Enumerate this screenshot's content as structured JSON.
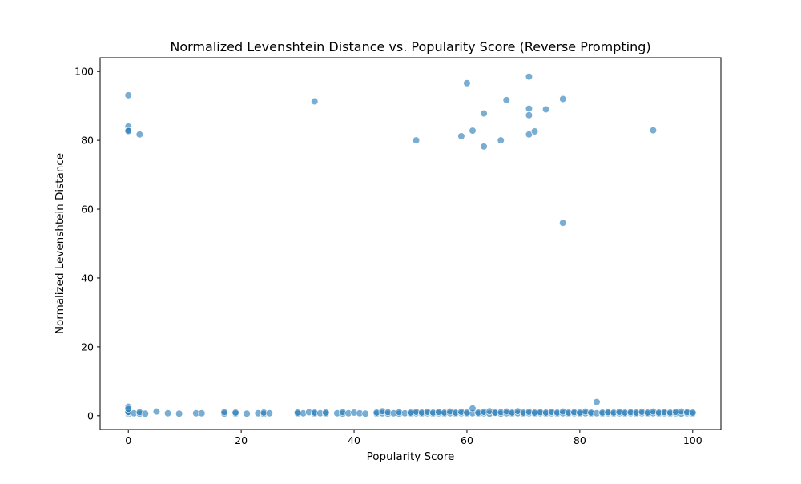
{
  "chart_data": {
    "type": "scatter",
    "title": "Normalized Levenshtein Distance vs. Popularity Score (Reverse Prompting)",
    "xlabel": "Popularity Score",
    "ylabel": "Normalized Levenshtein Distance",
    "xlim": [
      -5,
      105
    ],
    "ylim": [
      -4,
      104
    ],
    "xticks": [
      0,
      20,
      40,
      60,
      80,
      100
    ],
    "yticks": [
      0,
      20,
      40,
      60,
      80,
      100
    ],
    "grid": false,
    "legend": "none",
    "marker_color": "#1f77b4",
    "marker_alpha": 0.6,
    "outliers": [
      {
        "x": 0,
        "y": 93.1
      },
      {
        "x": 0,
        "y": 84.0
      },
      {
        "x": 0,
        "y": 82.9
      },
      {
        "x": 0,
        "y": 82.7
      },
      {
        "x": 2,
        "y": 81.7
      },
      {
        "x": 33,
        "y": 91.3
      },
      {
        "x": 51,
        "y": 80.0
      },
      {
        "x": 59,
        "y": 81.2
      },
      {
        "x": 60,
        "y": 96.6
      },
      {
        "x": 61,
        "y": 82.8
      },
      {
        "x": 63,
        "y": 87.8
      },
      {
        "x": 63,
        "y": 78.2
      },
      {
        "x": 66,
        "y": 80.0
      },
      {
        "x": 67,
        "y": 91.7
      },
      {
        "x": 71,
        "y": 98.5
      },
      {
        "x": 71,
        "y": 89.2
      },
      {
        "x": 71,
        "y": 87.3
      },
      {
        "x": 71,
        "y": 81.7
      },
      {
        "x": 72,
        "y": 82.6
      },
      {
        "x": 74,
        "y": 89.0
      },
      {
        "x": 77,
        "y": 92.0
      },
      {
        "x": 77,
        "y": 56.0
      },
      {
        "x": 93,
        "y": 82.9
      },
      {
        "x": 0,
        "y": 2.6
      },
      {
        "x": 0,
        "y": 2.0
      },
      {
        "x": 61,
        "y": 2.1
      },
      {
        "x": 83,
        "y": 4.0
      }
    ],
    "baseline_points": [
      {
        "x": 0,
        "y": 0.5
      },
      {
        "x": 0,
        "y": 0.9
      },
      {
        "x": 0,
        "y": 1.1
      },
      {
        "x": 1,
        "y": 0.7
      },
      {
        "x": 2,
        "y": 0.6
      },
      {
        "x": 2,
        "y": 1.0
      },
      {
        "x": 3,
        "y": 0.6
      },
      {
        "x": 5,
        "y": 1.2
      },
      {
        "x": 7,
        "y": 0.7
      },
      {
        "x": 9,
        "y": 0.6
      },
      {
        "x": 12,
        "y": 0.7
      },
      {
        "x": 13,
        "y": 0.7
      },
      {
        "x": 17,
        "y": 0.6
      },
      {
        "x": 17,
        "y": 1.0
      },
      {
        "x": 19,
        "y": 0.6
      },
      {
        "x": 19,
        "y": 0.9
      },
      {
        "x": 21,
        "y": 0.6
      },
      {
        "x": 23,
        "y": 0.7
      },
      {
        "x": 24,
        "y": 0.5
      },
      {
        "x": 24,
        "y": 0.9
      },
      {
        "x": 25,
        "y": 0.7
      },
      {
        "x": 30,
        "y": 0.6
      },
      {
        "x": 30,
        "y": 0.9
      },
      {
        "x": 31,
        "y": 0.7
      },
      {
        "x": 32,
        "y": 1.0
      },
      {
        "x": 33,
        "y": 0.6
      },
      {
        "x": 33,
        "y": 0.9
      },
      {
        "x": 34,
        "y": 0.7
      },
      {
        "x": 35,
        "y": 0.6
      },
      {
        "x": 35,
        "y": 0.9
      },
      {
        "x": 37,
        "y": 0.7
      },
      {
        "x": 38,
        "y": 0.6
      },
      {
        "x": 38,
        "y": 1.0
      },
      {
        "x": 39,
        "y": 0.7
      },
      {
        "x": 40,
        "y": 0.9
      },
      {
        "x": 41,
        "y": 0.7
      },
      {
        "x": 42,
        "y": 0.6
      },
      {
        "x": 44,
        "y": 0.6
      },
      {
        "x": 44,
        "y": 0.9
      },
      {
        "x": 45,
        "y": 0.7
      },
      {
        "x": 45,
        "y": 1.3
      },
      {
        "x": 46,
        "y": 0.6
      },
      {
        "x": 46,
        "y": 1.0
      },
      {
        "x": 47,
        "y": 0.7
      },
      {
        "x": 48,
        "y": 0.6
      },
      {
        "x": 48,
        "y": 1.0
      },
      {
        "x": 49,
        "y": 0.7
      },
      {
        "x": 50,
        "y": 0.6
      },
      {
        "x": 50,
        "y": 0.9
      },
      {
        "x": 51,
        "y": 0.7
      },
      {
        "x": 51,
        "y": 1.1
      },
      {
        "x": 52,
        "y": 0.6
      },
      {
        "x": 52,
        "y": 0.9
      },
      {
        "x": 53,
        "y": 0.7
      },
      {
        "x": 53,
        "y": 1.1
      },
      {
        "x": 54,
        "y": 0.6
      },
      {
        "x": 54,
        "y": 0.9
      },
      {
        "x": 55,
        "y": 0.7
      },
      {
        "x": 55,
        "y": 1.1
      },
      {
        "x": 56,
        "y": 0.6
      },
      {
        "x": 56,
        "y": 0.9
      },
      {
        "x": 57,
        "y": 0.7
      },
      {
        "x": 57,
        "y": 1.2
      },
      {
        "x": 58,
        "y": 0.6
      },
      {
        "x": 58,
        "y": 0.9
      },
      {
        "x": 59,
        "y": 0.7
      },
      {
        "x": 59,
        "y": 1.1
      },
      {
        "x": 60,
        "y": 0.6
      },
      {
        "x": 60,
        "y": 0.9
      },
      {
        "x": 61,
        "y": 0.7
      },
      {
        "x": 62,
        "y": 0.6
      },
      {
        "x": 62,
        "y": 0.9
      },
      {
        "x": 63,
        "y": 0.7
      },
      {
        "x": 63,
        "y": 1.1
      },
      {
        "x": 64,
        "y": 0.6
      },
      {
        "x": 64,
        "y": 1.3
      },
      {
        "x": 65,
        "y": 0.7
      },
      {
        "x": 65,
        "y": 0.9
      },
      {
        "x": 66,
        "y": 0.6
      },
      {
        "x": 66,
        "y": 1.0
      },
      {
        "x": 67,
        "y": 0.7
      },
      {
        "x": 67,
        "y": 1.2
      },
      {
        "x": 68,
        "y": 0.6
      },
      {
        "x": 68,
        "y": 0.9
      },
      {
        "x": 69,
        "y": 0.7
      },
      {
        "x": 69,
        "y": 1.3
      },
      {
        "x": 70,
        "y": 0.6
      },
      {
        "x": 70,
        "y": 0.9
      },
      {
        "x": 71,
        "y": 0.7
      },
      {
        "x": 71,
        "y": 1.1
      },
      {
        "x": 72,
        "y": 0.6
      },
      {
        "x": 72,
        "y": 0.9
      },
      {
        "x": 73,
        "y": 0.7
      },
      {
        "x": 73,
        "y": 1.0
      },
      {
        "x": 74,
        "y": 0.6
      },
      {
        "x": 74,
        "y": 0.9
      },
      {
        "x": 75,
        "y": 0.7
      },
      {
        "x": 75,
        "y": 1.1
      },
      {
        "x": 76,
        "y": 0.6
      },
      {
        "x": 76,
        "y": 0.9
      },
      {
        "x": 77,
        "y": 0.7
      },
      {
        "x": 77,
        "y": 1.2
      },
      {
        "x": 78,
        "y": 0.6
      },
      {
        "x": 78,
        "y": 0.9
      },
      {
        "x": 79,
        "y": 0.7
      },
      {
        "x": 79,
        "y": 1.0
      },
      {
        "x": 80,
        "y": 0.6
      },
      {
        "x": 80,
        "y": 0.9
      },
      {
        "x": 81,
        "y": 0.7
      },
      {
        "x": 81,
        "y": 1.2
      },
      {
        "x": 82,
        "y": 0.6
      },
      {
        "x": 82,
        "y": 0.9
      },
      {
        "x": 83,
        "y": 0.7
      },
      {
        "x": 84,
        "y": 0.6
      },
      {
        "x": 84,
        "y": 0.9
      },
      {
        "x": 85,
        "y": 0.7
      },
      {
        "x": 85,
        "y": 1.0
      },
      {
        "x": 86,
        "y": 0.6
      },
      {
        "x": 86,
        "y": 0.9
      },
      {
        "x": 87,
        "y": 0.7
      },
      {
        "x": 87,
        "y": 1.1
      },
      {
        "x": 88,
        "y": 0.6
      },
      {
        "x": 88,
        "y": 0.9
      },
      {
        "x": 89,
        "y": 0.7
      },
      {
        "x": 89,
        "y": 1.0
      },
      {
        "x": 90,
        "y": 0.6
      },
      {
        "x": 90,
        "y": 0.9
      },
      {
        "x": 91,
        "y": 0.7
      },
      {
        "x": 91,
        "y": 1.1
      },
      {
        "x": 92,
        "y": 0.6
      },
      {
        "x": 92,
        "y": 0.9
      },
      {
        "x": 93,
        "y": 0.7
      },
      {
        "x": 93,
        "y": 1.2
      },
      {
        "x": 94,
        "y": 0.6
      },
      {
        "x": 94,
        "y": 0.9
      },
      {
        "x": 95,
        "y": 0.7
      },
      {
        "x": 95,
        "y": 1.0
      },
      {
        "x": 96,
        "y": 0.6
      },
      {
        "x": 96,
        "y": 0.9
      },
      {
        "x": 97,
        "y": 0.7
      },
      {
        "x": 97,
        "y": 1.1
      },
      {
        "x": 98,
        "y": 0.6
      },
      {
        "x": 98,
        "y": 1.2
      },
      {
        "x": 99,
        "y": 0.7
      },
      {
        "x": 99,
        "y": 1.0
      },
      {
        "x": 100,
        "y": 0.6
      },
      {
        "x": 100,
        "y": 0.9
      }
    ]
  }
}
